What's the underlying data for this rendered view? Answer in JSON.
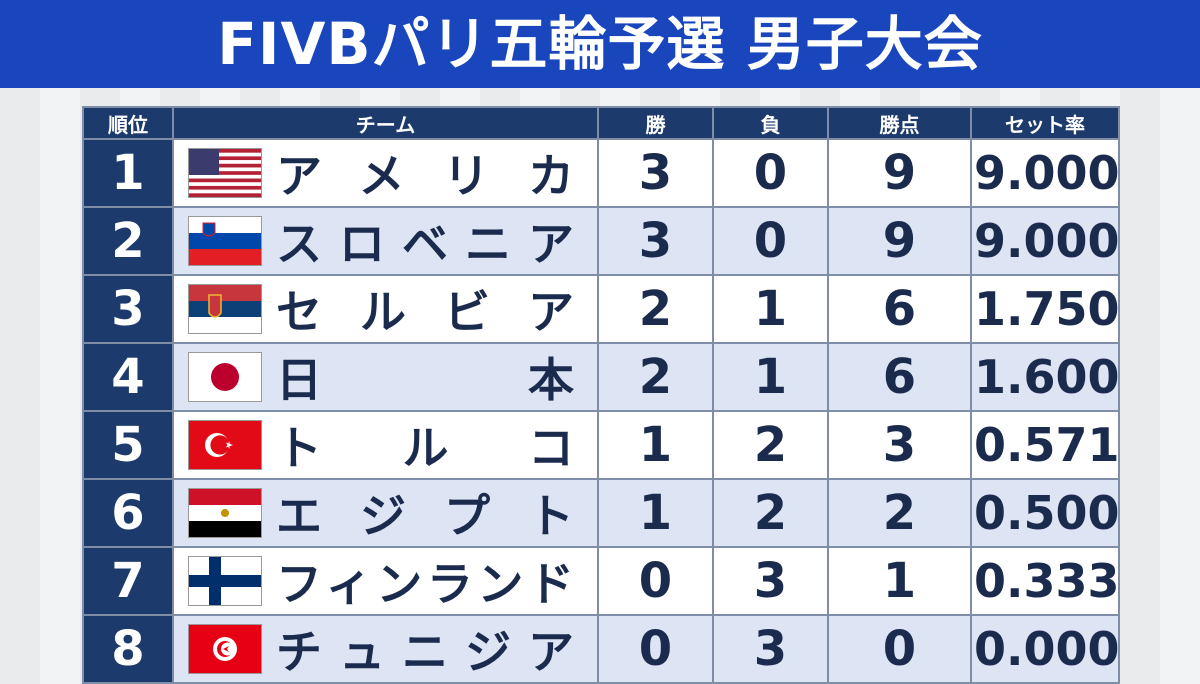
{
  "header": {
    "title": "FIVBパリ五輪予選 男子大会"
  },
  "table": {
    "columns": [
      "順位",
      "チーム",
      "勝",
      "負",
      "勝点",
      "セット率"
    ],
    "rows": [
      [
        "1",
        "アメリカ",
        "3",
        "0",
        "9",
        "9.000"
      ],
      [
        "2",
        "スロベニア",
        "3",
        "0",
        "9",
        "9.000"
      ],
      [
        "3",
        "セルビア",
        "2",
        "1",
        "6",
        "1.750"
      ],
      [
        "4",
        "日本",
        "2",
        "1",
        "6",
        "1.600"
      ],
      [
        "5",
        "トルコ",
        "1",
        "2",
        "3",
        "0.571"
      ],
      [
        "6",
        "エジプト",
        "1",
        "2",
        "2",
        "0.500"
      ],
      [
        "7",
        "フィンランド",
        "0",
        "3",
        "1",
        "0.333"
      ],
      [
        "8",
        "チュニジア",
        "0",
        "3",
        "0",
        "0.000"
      ]
    ]
  }
}
